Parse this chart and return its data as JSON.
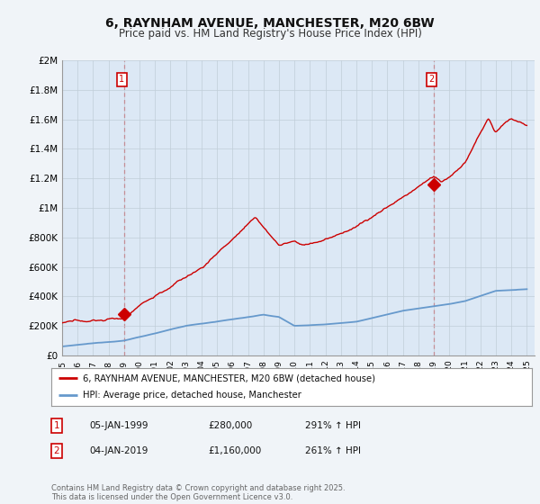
{
  "title": "6, RAYNHAM AVENUE, MANCHESTER, M20 6BW",
  "subtitle": "Price paid vs. HM Land Registry's House Price Index (HPI)",
  "title_fontsize": 10,
  "subtitle_fontsize": 8.5,
  "ylabel_ticks": [
    "£0",
    "£200K",
    "£400K",
    "£600K",
    "£800K",
    "£1M",
    "£1.2M",
    "£1.4M",
    "£1.6M",
    "£1.8M",
    "£2M"
  ],
  "ytick_values": [
    0,
    200000,
    400000,
    600000,
    800000,
    1000000,
    1200000,
    1400000,
    1600000,
    1800000,
    2000000
  ],
  "xlim_start": 1995.0,
  "xlim_end": 2025.5,
  "ylim_min": 0,
  "ylim_max": 2000000,
  "hpi_color": "#6699cc",
  "price_color": "#cc0000",
  "background_color": "#f0f4f8",
  "plot_bg_color": "#dce8f5",
  "marker1_year": 1999.01,
  "marker1_price": 280000,
  "marker1_label": "1",
  "marker2_year": 2019.01,
  "marker2_price": 1160000,
  "marker2_label": "2",
  "legend_line1": "6, RAYNHAM AVENUE, MANCHESTER, M20 6BW (detached house)",
  "legend_line2": "HPI: Average price, detached house, Manchester",
  "table_row1": [
    "1",
    "05-JAN-1999",
    "£280,000",
    "291% ↑ HPI"
  ],
  "table_row2": [
    "2",
    "04-JAN-2019",
    "£1,160,000",
    "261% ↑ HPI"
  ],
  "footer": "Contains HM Land Registry data © Crown copyright and database right 2025.\nThis data is licensed under the Open Government Licence v3.0.",
  "xtick_years": [
    1995,
    1996,
    1997,
    1998,
    1999,
    2000,
    2001,
    2002,
    2003,
    2004,
    2005,
    2006,
    2007,
    2008,
    2009,
    2010,
    2011,
    2012,
    2013,
    2014,
    2015,
    2016,
    2017,
    2018,
    2019,
    2020,
    2021,
    2022,
    2023,
    2024,
    2025
  ]
}
